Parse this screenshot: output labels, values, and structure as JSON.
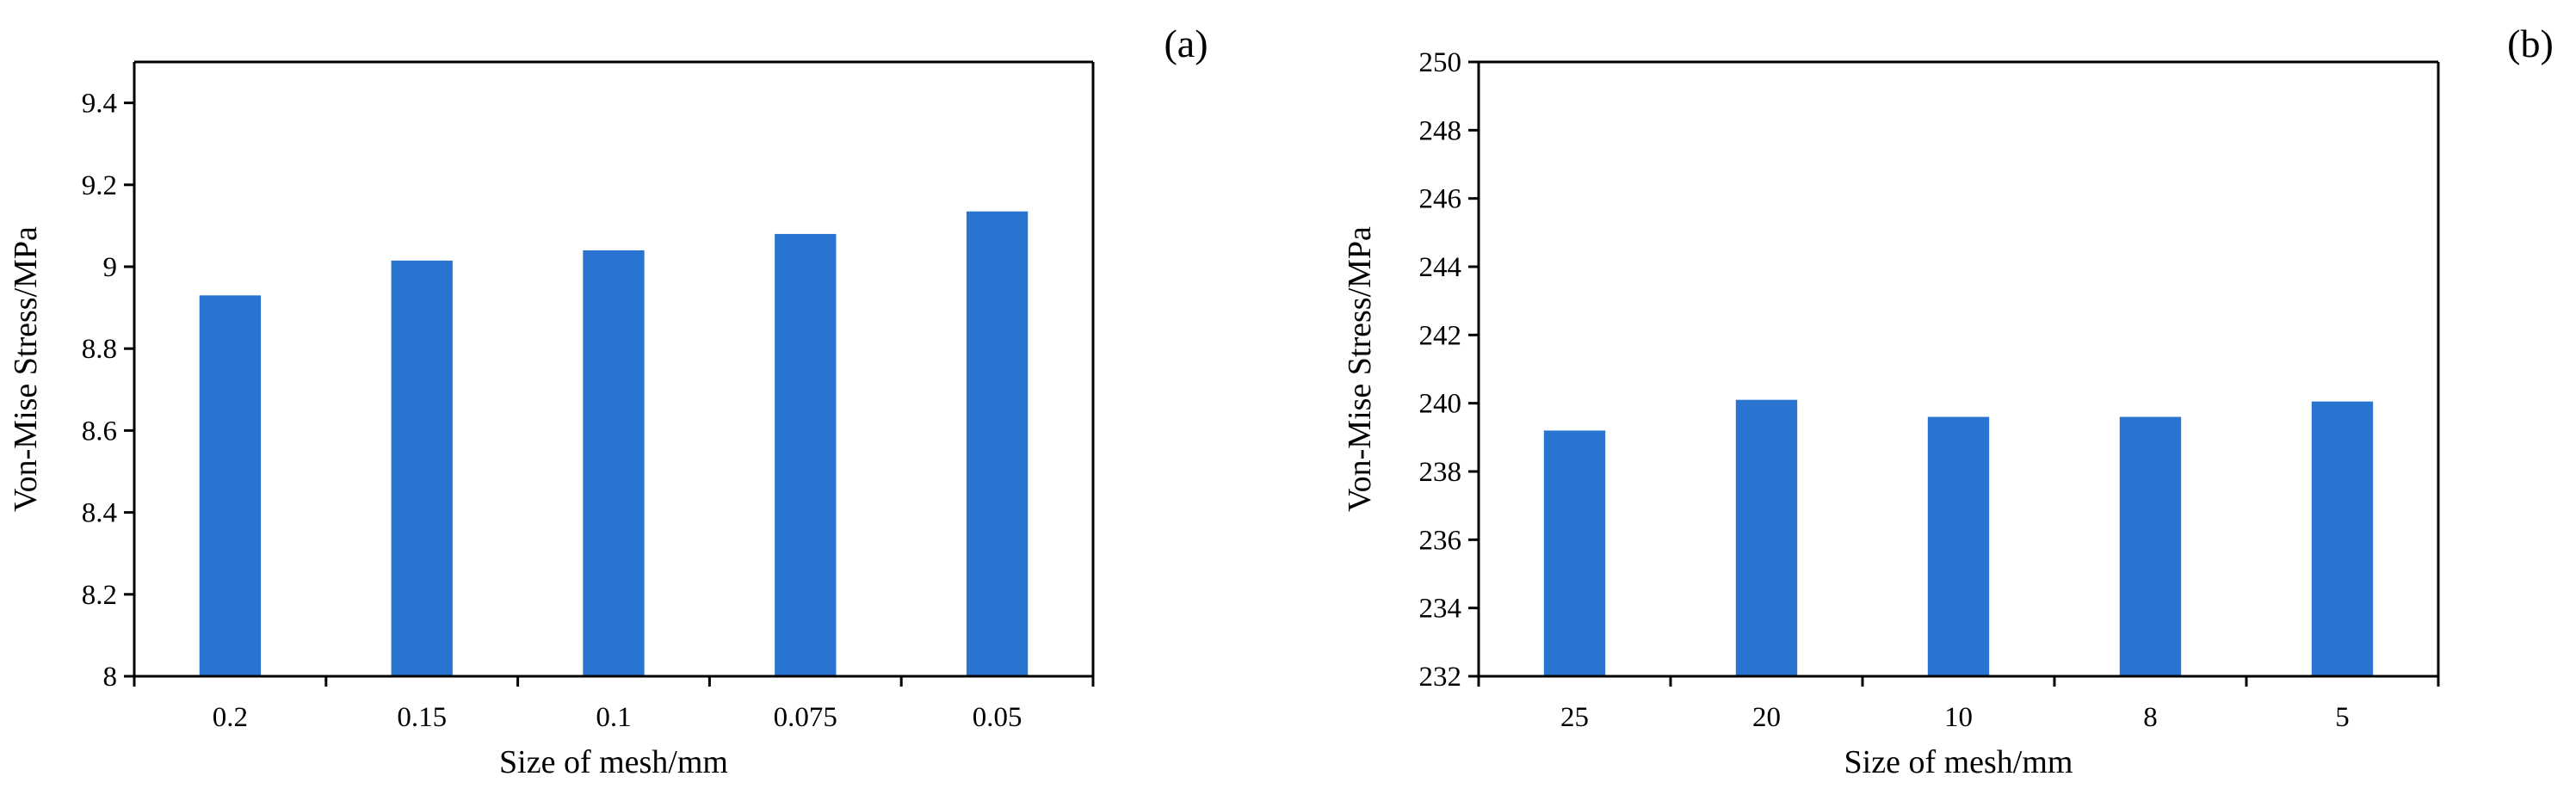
{
  "chart_data": [
    {
      "type": "bar",
      "panel_label": "(a)",
      "categories": [
        "0.2",
        "0.15",
        "0.1",
        "0.075",
        "0.05"
      ],
      "values": [
        8.93,
        9.015,
        9.04,
        9.08,
        9.135
      ],
      "xlabel": "Size of mesh/mm",
      "ylabel": "Von-Mise Stress/MPa",
      "ylim": [
        8,
        9.5
      ],
      "yticks": [
        8,
        8.2,
        8.4,
        8.6,
        8.8,
        9,
        9.2,
        9.4
      ],
      "ytick_labels": [
        "8",
        "8.2",
        "8.4",
        "8.6",
        "8.8",
        "9",
        "9.2",
        "9.4"
      ],
      "bar_color": "#2874d0",
      "grid": false,
      "legend": "none"
    },
    {
      "type": "bar",
      "panel_label": "(b)",
      "categories": [
        "25",
        "20",
        "10",
        "8",
        "5"
      ],
      "values": [
        239.2,
        240.1,
        239.6,
        239.6,
        240.05
      ],
      "xlabel": "Size of mesh/mm",
      "ylabel": "Von-Mise Stress/MPa",
      "ylim": [
        232,
        250
      ],
      "yticks": [
        232,
        234,
        236,
        238,
        240,
        242,
        244,
        246,
        248,
        250
      ],
      "ytick_labels": [
        "232",
        "234",
        "236",
        "238",
        "240",
        "242",
        "244",
        "246",
        "248",
        "250"
      ],
      "bar_color": "#2874d0",
      "grid": false,
      "legend": "none"
    }
  ]
}
